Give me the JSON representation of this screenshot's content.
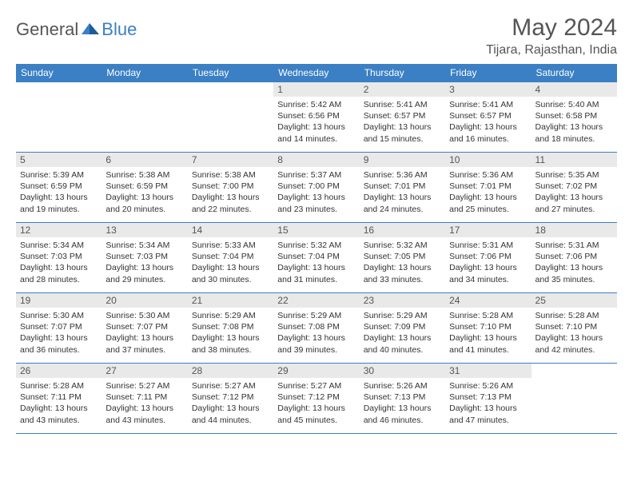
{
  "logo": {
    "text1": "General",
    "text2": "Blue"
  },
  "title": "May 2024",
  "location": "Tijara, Rajasthan, India",
  "colors": {
    "header_bg": "#3b7fc4",
    "header_text": "#ffffff",
    "daynum_bg": "#e9e9e9",
    "border": "#3b7fc4",
    "text": "#333333",
    "title_text": "#555555"
  },
  "day_headers": [
    "Sunday",
    "Monday",
    "Tuesday",
    "Wednesday",
    "Thursday",
    "Friday",
    "Saturday"
  ],
  "weeks": [
    [
      {
        "n": "",
        "sr": "",
        "ss": "",
        "dl": ""
      },
      {
        "n": "",
        "sr": "",
        "ss": "",
        "dl": ""
      },
      {
        "n": "",
        "sr": "",
        "ss": "",
        "dl": ""
      },
      {
        "n": "1",
        "sr": "5:42 AM",
        "ss": "6:56 PM",
        "dl": "13 hours and 14 minutes."
      },
      {
        "n": "2",
        "sr": "5:41 AM",
        "ss": "6:57 PM",
        "dl": "13 hours and 15 minutes."
      },
      {
        "n": "3",
        "sr": "5:41 AM",
        "ss": "6:57 PM",
        "dl": "13 hours and 16 minutes."
      },
      {
        "n": "4",
        "sr": "5:40 AM",
        "ss": "6:58 PM",
        "dl": "13 hours and 18 minutes."
      }
    ],
    [
      {
        "n": "5",
        "sr": "5:39 AM",
        "ss": "6:59 PM",
        "dl": "13 hours and 19 minutes."
      },
      {
        "n": "6",
        "sr": "5:38 AM",
        "ss": "6:59 PM",
        "dl": "13 hours and 20 minutes."
      },
      {
        "n": "7",
        "sr": "5:38 AM",
        "ss": "7:00 PM",
        "dl": "13 hours and 22 minutes."
      },
      {
        "n": "8",
        "sr": "5:37 AM",
        "ss": "7:00 PM",
        "dl": "13 hours and 23 minutes."
      },
      {
        "n": "9",
        "sr": "5:36 AM",
        "ss": "7:01 PM",
        "dl": "13 hours and 24 minutes."
      },
      {
        "n": "10",
        "sr": "5:36 AM",
        "ss": "7:01 PM",
        "dl": "13 hours and 25 minutes."
      },
      {
        "n": "11",
        "sr": "5:35 AM",
        "ss": "7:02 PM",
        "dl": "13 hours and 27 minutes."
      }
    ],
    [
      {
        "n": "12",
        "sr": "5:34 AM",
        "ss": "7:03 PM",
        "dl": "13 hours and 28 minutes."
      },
      {
        "n": "13",
        "sr": "5:34 AM",
        "ss": "7:03 PM",
        "dl": "13 hours and 29 minutes."
      },
      {
        "n": "14",
        "sr": "5:33 AM",
        "ss": "7:04 PM",
        "dl": "13 hours and 30 minutes."
      },
      {
        "n": "15",
        "sr": "5:32 AM",
        "ss": "7:04 PM",
        "dl": "13 hours and 31 minutes."
      },
      {
        "n": "16",
        "sr": "5:32 AM",
        "ss": "7:05 PM",
        "dl": "13 hours and 33 minutes."
      },
      {
        "n": "17",
        "sr": "5:31 AM",
        "ss": "7:06 PM",
        "dl": "13 hours and 34 minutes."
      },
      {
        "n": "18",
        "sr": "5:31 AM",
        "ss": "7:06 PM",
        "dl": "13 hours and 35 minutes."
      }
    ],
    [
      {
        "n": "19",
        "sr": "5:30 AM",
        "ss": "7:07 PM",
        "dl": "13 hours and 36 minutes."
      },
      {
        "n": "20",
        "sr": "5:30 AM",
        "ss": "7:07 PM",
        "dl": "13 hours and 37 minutes."
      },
      {
        "n": "21",
        "sr": "5:29 AM",
        "ss": "7:08 PM",
        "dl": "13 hours and 38 minutes."
      },
      {
        "n": "22",
        "sr": "5:29 AM",
        "ss": "7:08 PM",
        "dl": "13 hours and 39 minutes."
      },
      {
        "n": "23",
        "sr": "5:29 AM",
        "ss": "7:09 PM",
        "dl": "13 hours and 40 minutes."
      },
      {
        "n": "24",
        "sr": "5:28 AM",
        "ss": "7:10 PM",
        "dl": "13 hours and 41 minutes."
      },
      {
        "n": "25",
        "sr": "5:28 AM",
        "ss": "7:10 PM",
        "dl": "13 hours and 42 minutes."
      }
    ],
    [
      {
        "n": "26",
        "sr": "5:28 AM",
        "ss": "7:11 PM",
        "dl": "13 hours and 43 minutes."
      },
      {
        "n": "27",
        "sr": "5:27 AM",
        "ss": "7:11 PM",
        "dl": "13 hours and 43 minutes."
      },
      {
        "n": "28",
        "sr": "5:27 AM",
        "ss": "7:12 PM",
        "dl": "13 hours and 44 minutes."
      },
      {
        "n": "29",
        "sr": "5:27 AM",
        "ss": "7:12 PM",
        "dl": "13 hours and 45 minutes."
      },
      {
        "n": "30",
        "sr": "5:26 AM",
        "ss": "7:13 PM",
        "dl": "13 hours and 46 minutes."
      },
      {
        "n": "31",
        "sr": "5:26 AM",
        "ss": "7:13 PM",
        "dl": "13 hours and 47 minutes."
      },
      {
        "n": "",
        "sr": "",
        "ss": "",
        "dl": ""
      }
    ]
  ],
  "labels": {
    "sunrise": "Sunrise:",
    "sunset": "Sunset:",
    "daylight": "Daylight:"
  }
}
